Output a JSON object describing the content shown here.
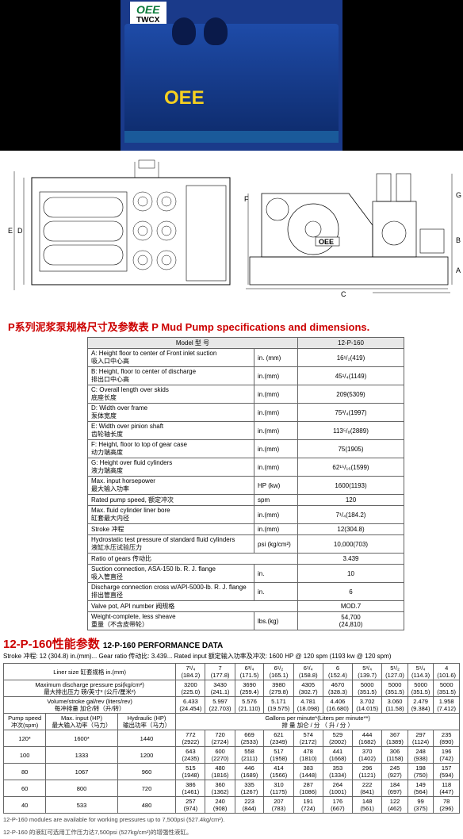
{
  "hero": {
    "logo_line1": "OEE",
    "logo_line2": "TWCX",
    "pump_label": "OEE",
    "bg_color": "#000000",
    "pump_color": "#1e4ba8"
  },
  "diagram": {
    "oee_box_label": "OEE",
    "dim_labels": [
      "A",
      "B",
      "C",
      "D",
      "E",
      "F",
      "G"
    ]
  },
  "title1": "P系列泥浆泵规格尺寸及参数表   P Mud Pump specifications and dimensions.",
  "spec_table": {
    "header_model": "Model  型  号",
    "header_val": "12-P-160",
    "rows": [
      {
        "label": "A: Height floor to center of   Front inlet suction\n吸入口中心高",
        "unit": "in. (mm)",
        "val": "16¹/₂(419)"
      },
      {
        "label": "B: Height, floor to center of discharge\n排出口中心高",
        "unit": "in.(mm)",
        "val": "45¹/₄(1149)"
      },
      {
        "label": "C: Overall length over skids\n底座长度",
        "unit": "in.(mm)",
        "val": "209(5309)"
      },
      {
        "label": "D: Width over frame\n泵体宽度",
        "unit": "in.(mm)",
        "val": "75³/₄(1997)"
      },
      {
        "label": "E: Width over pinion shaft\n齿轮轴长度",
        "unit": "in.(mm)",
        "val": "113⁵/₈(2889)"
      },
      {
        "label": "F: Height, floor to top of gear case\n动力端高度",
        "unit": "in.(mm)",
        "val": "75(1905)"
      },
      {
        "label": "G: Height over fluid cylinders\n液力端高度",
        "unit": "in.(mm)",
        "val": "62¹⁵/₁₆(1599)"
      },
      {
        "label": "Max. input horsepower\n最大输入功率",
        "unit": "HP (kw)",
        "val": "1600(1193)"
      },
      {
        "label": "Rated pump speed,  额定冲次",
        "unit": "spm",
        "val": "120"
      },
      {
        "label": "Max. fluid cylinder liner bore\n缸套最大内径",
        "unit": "in.(mm)",
        "val": "7¹/₄(184.2)"
      },
      {
        "label": "Stroke 冲程",
        "unit": "in.(mm)",
        "val": "12(304.8)"
      },
      {
        "label": "Hydrostatic test pressure of standard fluid cylinders\n液缸水压试验压力",
        "unit": "psi (kg/cm²)",
        "val": "10,000(703)"
      },
      {
        "label": "Ratio of gears 传动比",
        "unit": "",
        "val": "3.439"
      },
      {
        "label": "Suction connection, ASA-150 lb. R. J. flange\n吸入管直径",
        "unit": "in.",
        "val": "10"
      },
      {
        "label": "Discharge connection cross w/API-5000-lb. R. J. flange\n排出管直径",
        "unit": "in.",
        "val": "6"
      },
      {
        "label": "Valve pot, API number 阀规格",
        "unit": "",
        "val": "MOD.7"
      },
      {
        "label": "Weight-complete, less sheave\n重量（不含皮带轮）",
        "unit": "lbs.(kg)",
        "val": "54,700\n(24,810)"
      }
    ]
  },
  "perf_title": "12-P-160性能参数",
  "perf_subtitle": "12-P-160 PERFORMANCE DATA",
  "perf_meta": "Stroke 冲程: 12 (304.8) in.(mm)...      Gear ratio  传动比: 3.439...          Rated input 额定输入功率及冲次: 1600 HP @ 120 spm (1193 kw @ 120 spm)",
  "perf_table": {
    "row1_label": "Liner size 缸套规格   in.(mm)",
    "liner_sizes": [
      "7¹/₄\n(184.2)",
      "7\n(177.8)",
      "6³/₄\n(171.5)",
      "6¹/₂\n(165.1)",
      "6¹/₄\n(158.8)",
      "6\n(152.4)",
      "5³/₄\n(139.7)",
      "5¹/₂\n(127.0)",
      "5¹/₄\n(114.3)",
      "4\n(101.6)"
    ],
    "row2_label": "Maximum discharge pressure psi(kg/cm²)\n最大排出压力   磅/英寸² (公斤/厘米²)",
    "max_press": [
      "3200\n(225.0)",
      "3430\n(241.1)",
      "3690\n(259.4)",
      "3980\n(279.8)",
      "4305\n(302.7)",
      "4670\n(328.3)",
      "5000\n(351.5)",
      "5000\n(351.5)",
      "5000\n(351.5)",
      "5000\n(351.5)"
    ],
    "row3_label": "Volume/stroke gal/rev (liters/rev)\n每冲排量   加仑/转（升/转）",
    "vol_stroke": [
      "6.433\n(24.454)",
      "5.997\n(22.703)",
      "5.576\n(21.110)",
      "5.171\n(19.575)",
      "4.781\n(18.098)",
      "4.406\n(16.680)",
      "3.702\n(14.015)",
      "3.060\n(11.58)",
      "2.479\n(9.384)",
      "1.958\n(7.412)"
    ],
    "gpm_header": "Gallons per minute*(Liters per minute**)\n排  量    加仑 / 分  （ 升 / 分 ）",
    "left_hdr": [
      "Pump speed\n冲次(spm)",
      "Max. input (HP)\n最大输入功率（马力）",
      "Hydraulic (HP)\n输出功率（马力）"
    ],
    "data_rows": [
      {
        "sp": "120*",
        "mi": "1600*",
        "hy": "1440",
        "v": [
          "772\n(2922)",
          "720\n(2724)",
          "669\n(2533)",
          "621\n(2349)",
          "574\n(2172)",
          "529\n(2002)",
          "444\n(1682)",
          "367\n(1389)",
          "297\n(1124)",
          "235\n(890)"
        ]
      },
      {
        "sp": "100",
        "mi": "1333",
        "hy": "1200",
        "v": [
          "643\n(2435)",
          "600\n(2270)",
          "558\n(2111)",
          "517\n(1958)",
          "478\n(1810)",
          "441\n(1668)",
          "370\n(1402)",
          "306\n(1158)",
          "248\n(938)",
          "196\n(742)"
        ]
      },
      {
        "sp": "80",
        "mi": "1067",
        "hy": "960",
        "v": [
          "515\n(1948)",
          "480\n(1816)",
          "446\n(1689)",
          "414\n(1566)",
          "383\n(1448)",
          "353\n(1334)",
          "296\n(1121)",
          "245\n(927)",
          "198\n(750)",
          "157\n(594)"
        ]
      },
      {
        "sp": "60",
        "mi": "800",
        "hy": "720",
        "v": [
          "386\n(1461)",
          "360\n(1362)",
          "335\n(1267)",
          "310\n(1175)",
          "287\n(1086)",
          "264\n(1001)",
          "222\n(841)",
          "184\n(697)",
          "149\n(564)",
          "118\n(447)"
        ]
      },
      {
        "sp": "40",
        "mi": "533",
        "hy": "480",
        "v": [
          "257\n(974)",
          "240\n(908)",
          "223\n(844)",
          "207\n(783)",
          "191\n(724)",
          "176\n(667)",
          "148\n(561)",
          "122\n(462)",
          "99\n(375)",
          "78\n(296)"
        ]
      }
    ]
  },
  "footnote1": "12-P-160 modules are available for working pressures up to 7,500psi (527.4kg/cm²).",
  "footnote2": "12-P-160 的液缸可选用工作压力达7,500psi (527kg/cm²)的增强性液缸。",
  "colors": {
    "red": "#cc0000",
    "border": "#666666",
    "black": "#000000"
  }
}
